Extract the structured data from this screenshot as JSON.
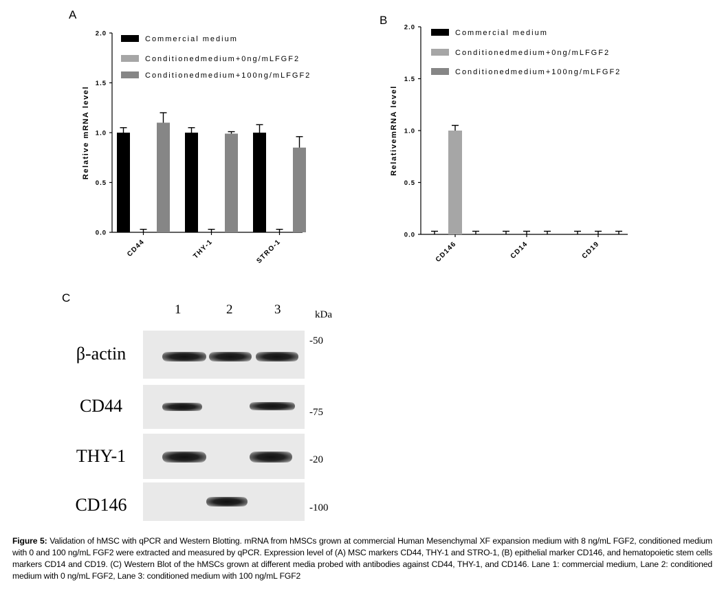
{
  "panels": {
    "a": "A",
    "b": "B",
    "c": "C"
  },
  "chart_data": [
    {
      "type": "bar",
      "panel": "A",
      "ylabel": "Relative mRNA level",
      "ylim": [
        0,
        2.0
      ],
      "yticks": [
        "0.0",
        "0.5",
        "1.0",
        "1.5",
        "2.0"
      ],
      "categories": [
        "CD44",
        "THY-1",
        "STRO-1"
      ],
      "legend_position": "top",
      "series": [
        {
          "name": "Commercial medium",
          "color": "#000000",
          "values": [
            1.0,
            1.0,
            1.0
          ],
          "errors": [
            0.05,
            0.05,
            0.08
          ]
        },
        {
          "name": "Conditionedmedium+0ng/mLFGF2",
          "color": "#a6a6a6",
          "values": [
            0.0,
            0.0,
            0.0
          ],
          "errors": [
            0.03,
            0.03,
            0.03
          ]
        },
        {
          "name": "Conditionedmedium+100ng/mLFGF2",
          "color": "#868686",
          "values": [
            1.1,
            0.99,
            0.85
          ],
          "errors": [
            0.1,
            0.02,
            0.11
          ]
        }
      ]
    },
    {
      "type": "bar",
      "panel": "B",
      "ylabel": "RelativemRNA level",
      "ylim": [
        0,
        2.0
      ],
      "yticks": [
        "0.0",
        "0.5",
        "1.0",
        "1.5",
        "2.0"
      ],
      "categories": [
        "CD146",
        "CD14",
        "CD19"
      ],
      "legend_position": "top",
      "series": [
        {
          "name": "Commercial medium",
          "color": "#000000",
          "values": [
            0.0,
            0.0,
            0.0
          ],
          "errors": [
            0.03,
            0.03,
            0.03
          ]
        },
        {
          "name": "Conditionedmedium+0ng/mLFGF2",
          "color": "#a6a6a6",
          "values": [
            1.0,
            0.0,
            0.0
          ],
          "errors": [
            0.05,
            0.03,
            0.03
          ]
        },
        {
          "name": "Conditionedmedium+100ng/mLFGF2",
          "color": "#868686",
          "values": [
            0.0,
            0.0,
            0.0
          ],
          "errors": [
            0.03,
            0.03,
            0.03
          ]
        }
      ]
    }
  ],
  "western_blot": {
    "lanes": [
      "1",
      "2",
      "3"
    ],
    "unit": "kDa",
    "rows": [
      {
        "label": "β-actin",
        "mw": "-50",
        "bands": [
          1,
          1,
          1
        ]
      },
      {
        "label": "CD44",
        "mw": "-75",
        "bands": [
          1,
          0,
          1
        ]
      },
      {
        "label": "THY-1",
        "mw": "-20",
        "bands": [
          1,
          0,
          1
        ]
      },
      {
        "label": "CD146",
        "mw": "-100",
        "bands": [
          0,
          1,
          0
        ]
      }
    ]
  },
  "caption": {
    "label": "Figure 5:",
    "text": " Validation of hMSC with qPCR and Western Blotting. mRNA from hMSCs grown at commercial Human Mesenchymal XF expansion medium with 8 ng/mL FGF2, conditioned medium with 0 and 100 ng/mL FGF2 were extracted and measured by qPCR. Expression level of (A) MSC markers CD44, THY-1 and STRO-1, (B) epithelial marker CD146, and hematopoietic stem cells markers CD14 and CD19. (C) Western Blot of the hMSCs grown at different media probed with antibodies against CD44, THY-1, and CD146. Lane 1: commercial medium, Lane 2: conditioned medium with 0 ng/mL FGF2, Lane 3: conditioned medium with 100 ng/mL FGF2"
  }
}
